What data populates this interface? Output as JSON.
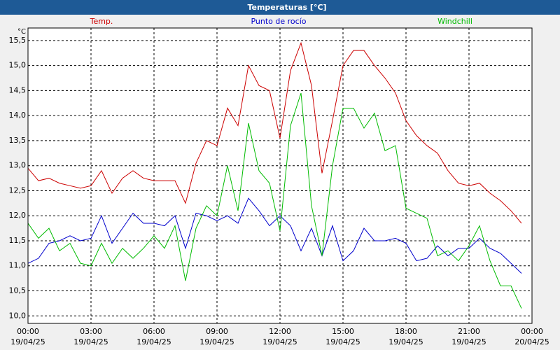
{
  "chart_data": {
    "type": "line",
    "title": "Temperaturas [°C]",
    "y_unit": "°C",
    "x": [
      0,
      0.5,
      1,
      1.5,
      2,
      2.5,
      3,
      3.5,
      4,
      4.5,
      5,
      5.5,
      6,
      6.5,
      7,
      7.5,
      8,
      8.5,
      9,
      9.5,
      10,
      10.5,
      11,
      11.5,
      12,
      12.5,
      13,
      13.5,
      14,
      14.5,
      15,
      15.5,
      16,
      16.5,
      17,
      17.5,
      18,
      18.5,
      19,
      19.5,
      20,
      20.5,
      21,
      21.5,
      22,
      22.5,
      23,
      23.5
    ],
    "series": [
      {
        "name": "Temp.",
        "color": "#cc0000",
        "values": [
          12.95,
          12.7,
          12.75,
          12.65,
          12.6,
          12.55,
          12.6,
          12.9,
          12.45,
          12.75,
          12.9,
          12.75,
          12.7,
          12.7,
          12.7,
          12.25,
          13.05,
          13.5,
          13.4,
          14.15,
          13.8,
          15.0,
          14.6,
          14.5,
          13.55,
          14.9,
          15.45,
          14.6,
          12.85,
          13.9,
          15.0,
          15.3,
          15.3,
          15.0,
          14.75,
          14.45,
          13.9,
          13.6,
          13.4,
          13.25,
          12.9,
          12.65,
          12.6,
          12.65,
          12.45,
          12.3,
          12.1,
          11.85
        ]
      },
      {
        "name": "Punto de rocío",
        "color": "#0000cc",
        "values": [
          11.05,
          11.15,
          11.45,
          11.5,
          11.6,
          11.5,
          11.55,
          12.0,
          11.45,
          11.75,
          12.05,
          11.85,
          11.85,
          11.8,
          12.0,
          11.35,
          12.05,
          12.0,
          11.9,
          12.0,
          11.85,
          12.35,
          12.1,
          11.8,
          12.0,
          11.8,
          11.3,
          11.75,
          11.2,
          11.8,
          11.1,
          11.3,
          11.75,
          11.5,
          11.5,
          11.55,
          11.45,
          11.1,
          11.15,
          11.4,
          11.2,
          11.35,
          11.35,
          11.55,
          11.35,
          11.25,
          11.05,
          10.85
        ]
      },
      {
        "name": "Windchill",
        "color": "#00bb00",
        "values": [
          11.85,
          11.55,
          11.75,
          11.3,
          11.45,
          11.05,
          11.0,
          11.45,
          11.05,
          11.35,
          11.15,
          11.35,
          11.6,
          11.35,
          11.8,
          10.7,
          11.75,
          12.2,
          12.0,
          13.0,
          12.1,
          13.85,
          12.9,
          12.65,
          11.7,
          13.8,
          14.45,
          12.2,
          11.2,
          13.0,
          14.15,
          14.15,
          13.75,
          14.05,
          13.3,
          13.4,
          12.15,
          12.05,
          11.95,
          11.2,
          11.3,
          11.1,
          11.4,
          11.8,
          11.1,
          10.6,
          10.6,
          10.15
        ]
      }
    ],
    "xlim": [
      0,
      24
    ],
    "xticks": [
      {
        "value": 0,
        "label": [
          "00:00",
          "19/04/25"
        ]
      },
      {
        "value": 3,
        "label": [
          "03:00",
          "19/04/25"
        ]
      },
      {
        "value": 6,
        "label": [
          "06:00",
          "19/04/25"
        ]
      },
      {
        "value": 9,
        "label": [
          "09:00",
          "19/04/25"
        ]
      },
      {
        "value": 12,
        "label": [
          "12:00",
          "19/04/25"
        ]
      },
      {
        "value": 15,
        "label": [
          "15:00",
          "19/04/25"
        ]
      },
      {
        "value": 18,
        "label": [
          "18:00",
          "19/04/25"
        ]
      },
      {
        "value": 21,
        "label": [
          "21:00",
          "19/04/25"
        ]
      },
      {
        "value": 24,
        "label": [
          "00:00",
          "20/04/25"
        ]
      }
    ],
    "ylim": [
      9.85,
      15.75
    ],
    "yticks": [
      {
        "value": 10,
        "label": "10,0"
      },
      {
        "value": 10.5,
        "label": "10,5"
      },
      {
        "value": 11,
        "label": "11,0"
      },
      {
        "value": 11.5,
        "label": "11,5"
      },
      {
        "value": 12,
        "label": "12,0"
      },
      {
        "value": 12.5,
        "label": "12,5"
      },
      {
        "value": 13,
        "label": "13,0"
      },
      {
        "value": 13.5,
        "label": "13,5"
      },
      {
        "value": 14,
        "label": "14,0"
      },
      {
        "value": 14.5,
        "label": "14,5"
      },
      {
        "value": 15,
        "label": "15,0"
      },
      {
        "value": 15.5,
        "label": "15,5"
      }
    ],
    "grid": true
  }
}
